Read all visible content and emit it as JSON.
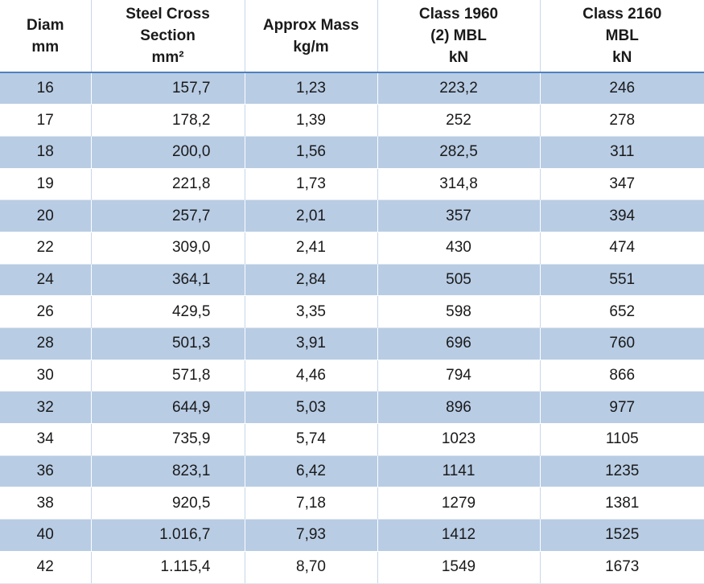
{
  "table": {
    "headers": [
      {
        "lines": [
          "Diam",
          "mm"
        ]
      },
      {
        "lines": [
          "Steel Cross",
          "Section",
          "mm²"
        ]
      },
      {
        "lines": [
          "Approx Mass",
          "kg/m"
        ]
      },
      {
        "lines": [
          "Class 1960",
          "(2)  MBL",
          "kN"
        ]
      },
      {
        "lines": [
          "Class 2160",
          "MBL",
          "kN"
        ]
      }
    ],
    "rows": [
      [
        "16",
        "157,7",
        "1,23",
        "223,2",
        "246"
      ],
      [
        "17",
        "178,2",
        "1,39",
        "252",
        "278"
      ],
      [
        "18",
        "200,0",
        "1,56",
        "282,5",
        "311"
      ],
      [
        "19",
        "221,8",
        "1,73",
        "314,8",
        "347"
      ],
      [
        "20",
        "257,7",
        "2,01",
        "357",
        "394"
      ],
      [
        "22",
        "309,0",
        "2,41",
        "430",
        "474"
      ],
      [
        "24",
        "364,1",
        "2,84",
        "505",
        "551"
      ],
      [
        "26",
        "429,5",
        "3,35",
        "598",
        "652"
      ],
      [
        "28",
        "501,3",
        "3,91",
        "696",
        "760"
      ],
      [
        "30",
        "571,8",
        "4,46",
        "794",
        "866"
      ],
      [
        "32",
        "644,9",
        "5,03",
        "896",
        "977"
      ],
      [
        "34",
        "735,9",
        "5,74",
        "1023",
        "1105"
      ],
      [
        "36",
        "823,1",
        "6,42",
        "1141",
        "1235"
      ],
      [
        "38",
        "920,5",
        "7,18",
        "1279",
        "1381"
      ],
      [
        "40",
        "1.016,7",
        "7,93",
        "1412",
        "1525"
      ],
      [
        "42",
        "1.115,4",
        "8,70",
        "1549",
        "1673"
      ]
    ]
  },
  "colors": {
    "band": "#b8cce4",
    "white": "#ffffff"
  }
}
